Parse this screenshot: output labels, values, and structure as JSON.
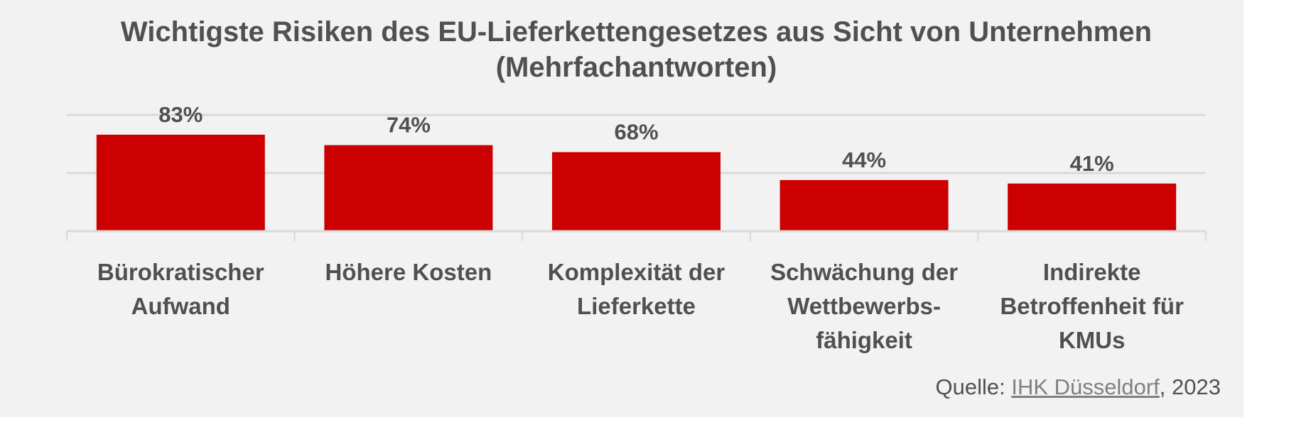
{
  "chart_data": {
    "type": "bar",
    "title": "Wichtigste Risiken des EU-Lieferkettengesetzes aus Sicht von Unternehmen (Mehrfachantworten)",
    "categories": [
      [
        "Bürokratischer",
        "Aufwand"
      ],
      [
        "Höhere Kosten"
      ],
      [
        "Komplexität der",
        "Lieferkette"
      ],
      [
        "Schwächung der",
        "Wettbewerbs-",
        "fähigkeit"
      ],
      [
        "Indirekte",
        "Betroffenheit für",
        "KMUs"
      ]
    ],
    "values": [
      83,
      74,
      68,
      44,
      41
    ],
    "value_labels": [
      "83%",
      "74%",
      "68%",
      "44%",
      "41%"
    ],
    "ylim": [
      0,
      100
    ],
    "gridlines": [
      50,
      100
    ],
    "grid": true,
    "bar_color": "#cc0000",
    "xlabel": "",
    "ylabel": ""
  },
  "source": {
    "prefix": "Quelle: ",
    "link": "IHK Düsseldorf",
    "suffix": ", 2023"
  }
}
